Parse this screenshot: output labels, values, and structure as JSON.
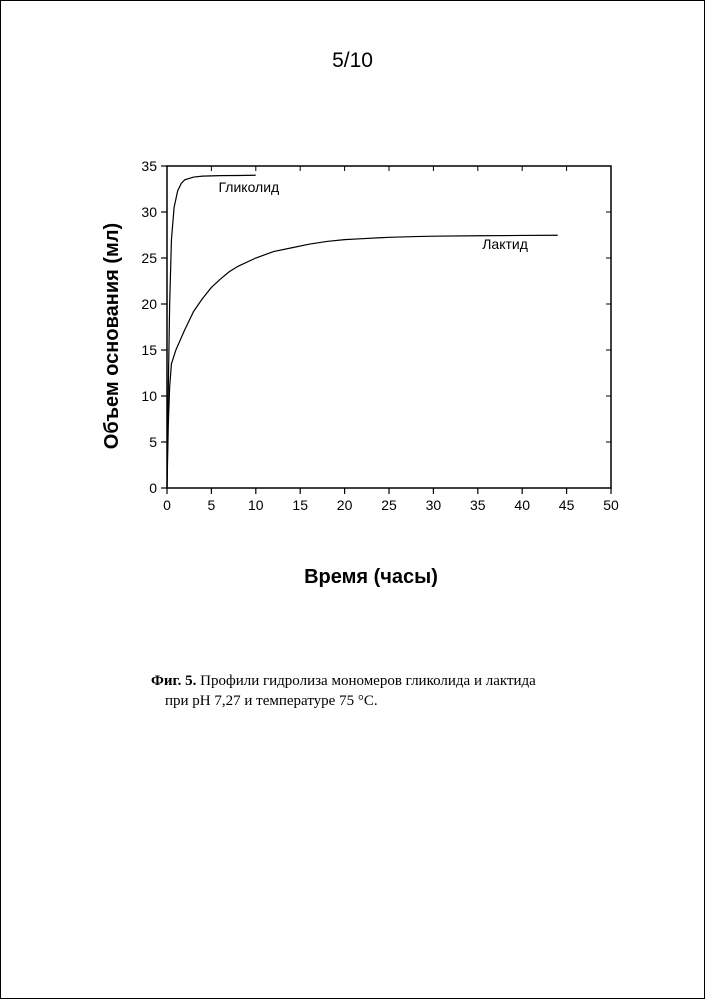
{
  "page_number": "5/10",
  "chart": {
    "type": "line",
    "background_color": "#ffffff",
    "axis_color": "#000000",
    "tick_color": "#000000",
    "tick_font_size": 14,
    "line_color": "#000000",
    "line_width": 1.2,
    "xaxis": {
      "label": "Время (часы)",
      "label_font_size": 20,
      "label_font_weight": "bold",
      "min": 0,
      "max": 50,
      "tick_step": 5,
      "ticks": [
        0,
        5,
        10,
        15,
        20,
        25,
        30,
        35,
        40,
        45,
        50
      ]
    },
    "yaxis": {
      "label": "Объем основания (мл)",
      "label_font_size": 20,
      "label_font_weight": "bold",
      "min": 0,
      "max": 35,
      "tick_step": 5,
      "ticks": [
        0,
        5,
        10,
        15,
        20,
        25,
        30,
        35
      ]
    },
    "series": [
      {
        "name": "Гликолид",
        "label_xy": [
          5.8,
          32.2
        ],
        "points": [
          [
            0.0,
            0.0
          ],
          [
            0.15,
            11.0
          ],
          [
            0.3,
            20.0
          ],
          [
            0.5,
            27.0
          ],
          [
            0.8,
            30.5
          ],
          [
            1.2,
            32.3
          ],
          [
            1.6,
            33.1
          ],
          [
            2.0,
            33.5
          ],
          [
            3.0,
            33.8
          ],
          [
            4.0,
            33.9
          ],
          [
            6.0,
            33.95
          ],
          [
            8.0,
            33.97
          ],
          [
            10.0,
            34.0
          ]
        ]
      },
      {
        "name": "Лактид",
        "label_xy": [
          35.5,
          26.0
        ],
        "points": [
          [
            0.0,
            0.0
          ],
          [
            0.15,
            7.0
          ],
          [
            0.3,
            11.0
          ],
          [
            0.5,
            13.5
          ],
          [
            1.0,
            15.0
          ],
          [
            2.0,
            17.2
          ],
          [
            3.0,
            19.2
          ],
          [
            4.0,
            20.6
          ],
          [
            5.0,
            21.8
          ],
          [
            6.0,
            22.7
          ],
          [
            7.0,
            23.5
          ],
          [
            8.0,
            24.1
          ],
          [
            10.0,
            25.0
          ],
          [
            12.0,
            25.7
          ],
          [
            14.0,
            26.1
          ],
          [
            16.0,
            26.5
          ],
          [
            18.0,
            26.8
          ],
          [
            20.0,
            27.0
          ],
          [
            22.0,
            27.1
          ],
          [
            25.0,
            27.25
          ],
          [
            28.0,
            27.33
          ],
          [
            30.0,
            27.37
          ],
          [
            35.0,
            27.42
          ],
          [
            40.0,
            27.45
          ],
          [
            44.0,
            27.47
          ]
        ]
      }
    ]
  },
  "caption": {
    "fig_label": "Фиг. 5.",
    "text_line1": " Профили гидролиза мономеров гликолида и лактида",
    "text_line2": "при pH 7,27 и температуре 75 °C."
  }
}
